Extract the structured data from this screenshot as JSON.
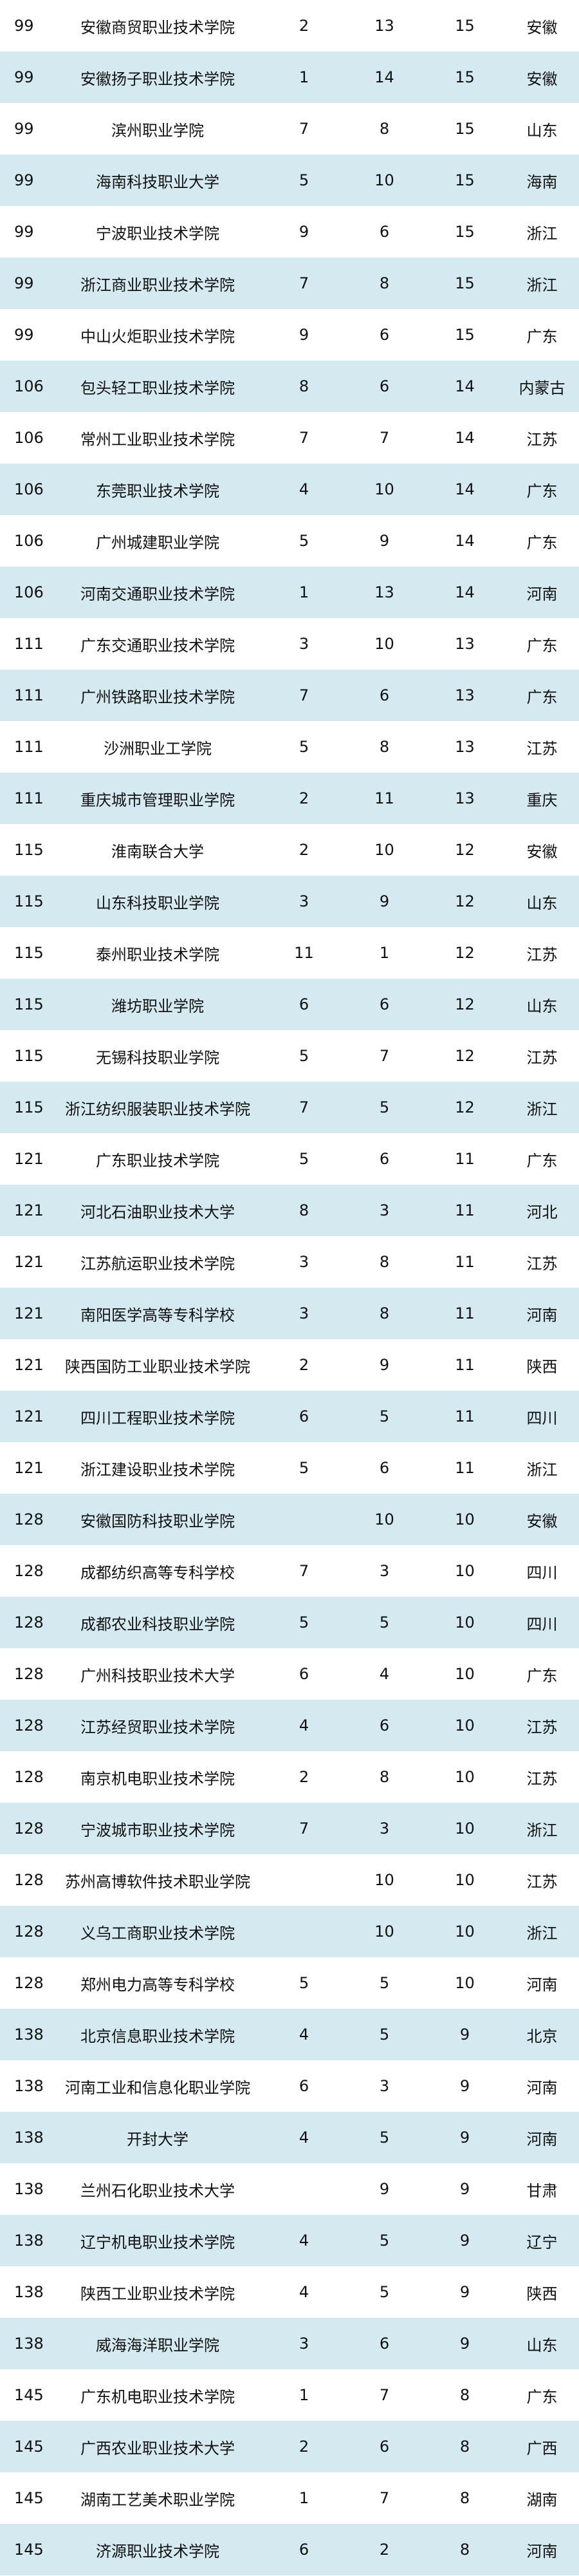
{
  "rows": [
    [
      "99",
      "安徽商贸职业技术学院",
      "2",
      "13",
      "15",
      "安徽"
    ],
    [
      "99",
      "安徽扬子职业技术学院",
      "1",
      "14",
      "15",
      "安徽"
    ],
    [
      "99",
      "滨州职业学院",
      "7",
      "8",
      "15",
      "山东"
    ],
    [
      "99",
      "海南科技职业大学",
      "5",
      "10",
      "15",
      "海南"
    ],
    [
      "99",
      "宁波职业技术学院",
      "9",
      "6",
      "15",
      "浙江"
    ],
    [
      "99",
      "浙江商业职业技术学院",
      "7",
      "8",
      "15",
      "浙江"
    ],
    [
      "99",
      "中山火炬职业技术学院",
      "9",
      "6",
      "15",
      "广东"
    ],
    [
      "106",
      "包头轻工职业技术学院",
      "8",
      "6",
      "14",
      "内蒙古"
    ],
    [
      "106",
      "常州工业职业技术学院",
      "7",
      "7",
      "14",
      "江苏"
    ],
    [
      "106",
      "东莞职业技术学院",
      "4",
      "10",
      "14",
      "广东"
    ],
    [
      "106",
      "广州城建职业学院",
      "5",
      "9",
      "14",
      "广东"
    ],
    [
      "106",
      "河南交通职业技术学院",
      "1",
      "13",
      "14",
      "河南"
    ],
    [
      "111",
      "广东交通职业技术学院",
      "3",
      "10",
      "13",
      "广东"
    ],
    [
      "111",
      "广州铁路职业技术学院",
      "7",
      "6",
      "13",
      "广东"
    ],
    [
      "111",
      "沙洲职业工学院",
      "5",
      "8",
      "13",
      "江苏"
    ],
    [
      "111",
      "重庆城市管理职业学院",
      "2",
      "11",
      "13",
      "重庆"
    ],
    [
      "115",
      "淮南联合大学",
      "2",
      "10",
      "12",
      "安徽"
    ],
    [
      "115",
      "山东科技职业学院",
      "3",
      "9",
      "12",
      "山东"
    ],
    [
      "115",
      "泰州职业技术学院",
      "11",
      "1",
      "12",
      "江苏"
    ],
    [
      "115",
      "潍坊职业学院",
      "6",
      "6",
      "12",
      "山东"
    ],
    [
      "115",
      "无锡科技职业学院",
      "5",
      "7",
      "12",
      "江苏"
    ],
    [
      "115",
      "浙江纺织服装职业技术学院",
      "7",
      "5",
      "12",
      "浙江"
    ],
    [
      "121",
      "广东职业技术学院",
      "5",
      "6",
      "11",
      "广东"
    ],
    [
      "121",
      "河北石油职业技术大学",
      "8",
      "3",
      "11",
      "河北"
    ],
    [
      "121",
      "江苏航运职业技术学院",
      "3",
      "8",
      "11",
      "江苏"
    ],
    [
      "121",
      "南阳医学高等专科学校",
      "3",
      "8",
      "11",
      "河南"
    ],
    [
      "121",
      "陕西国防工业职业技术学院",
      "2",
      "9",
      "11",
      "陕西"
    ],
    [
      "121",
      "四川工程职业技术学院",
      "6",
      "5",
      "11",
      "四川"
    ],
    [
      "121",
      "浙江建设职业技术学院",
      "5",
      "6",
      "11",
      "浙江"
    ],
    [
      "128",
      "安徽国防科技职业学院",
      "",
      "10",
      "10",
      "安徽"
    ],
    [
      "128",
      "成都纺织高等专科学校",
      "7",
      "3",
      "10",
      "四川"
    ],
    [
      "128",
      "成都农业科技职业学院",
      "5",
      "5",
      "10",
      "四川"
    ],
    [
      "128",
      "广州科技职业技术大学",
      "6",
      "4",
      "10",
      "广东"
    ],
    [
      "128",
      "江苏经贸职业技术学院",
      "4",
      "6",
      "10",
      "江苏"
    ],
    [
      "128",
      "南京机电职业技术学院",
      "2",
      "8",
      "10",
      "江苏"
    ],
    [
      "128",
      "宁波城市职业技术学院",
      "7",
      "3",
      "10",
      "浙江"
    ],
    [
      "128",
      "苏州高博软件技术职业学院",
      "",
      "10",
      "10",
      "江苏"
    ],
    [
      "128",
      "义乌工商职业技术学院",
      "",
      "10",
      "10",
      "浙江"
    ],
    [
      "128",
      "郑州电力高等专科学校",
      "5",
      "5",
      "10",
      "河南"
    ],
    [
      "138",
      "北京信息职业技术学院",
      "4",
      "5",
      "9",
      "北京"
    ],
    [
      "138",
      "河南工业和信息化职业学院",
      "6",
      "3",
      "9",
      "河南"
    ],
    [
      "138",
      "开封大学",
      "4",
      "5",
      "9",
      "河南"
    ],
    [
      "138",
      "兰州石化职业技术大学",
      "",
      "9",
      "9",
      "甘肃"
    ],
    [
      "138",
      "辽宁机电职业技术学院",
      "4",
      "5",
      "9",
      "辽宁"
    ],
    [
      "138",
      "陕西工业职业技术学院",
      "4",
      "5",
      "9",
      "陕西"
    ],
    [
      "138",
      "威海海洋职业学院",
      "3",
      "6",
      "9",
      "山东"
    ],
    [
      "145",
      "广东机电职业技术学院",
      "1",
      "7",
      "8",
      "广东"
    ],
    [
      "145",
      "广西农业职业技术大学",
      "2",
      "6",
      "8",
      "广西"
    ],
    [
      "145",
      "湖南工艺美术职业学院",
      "1",
      "7",
      "8",
      "湖南"
    ],
    [
      "145",
      "济源职业技术学院",
      "6",
      "2",
      "8",
      "河南"
    ]
  ]
}
